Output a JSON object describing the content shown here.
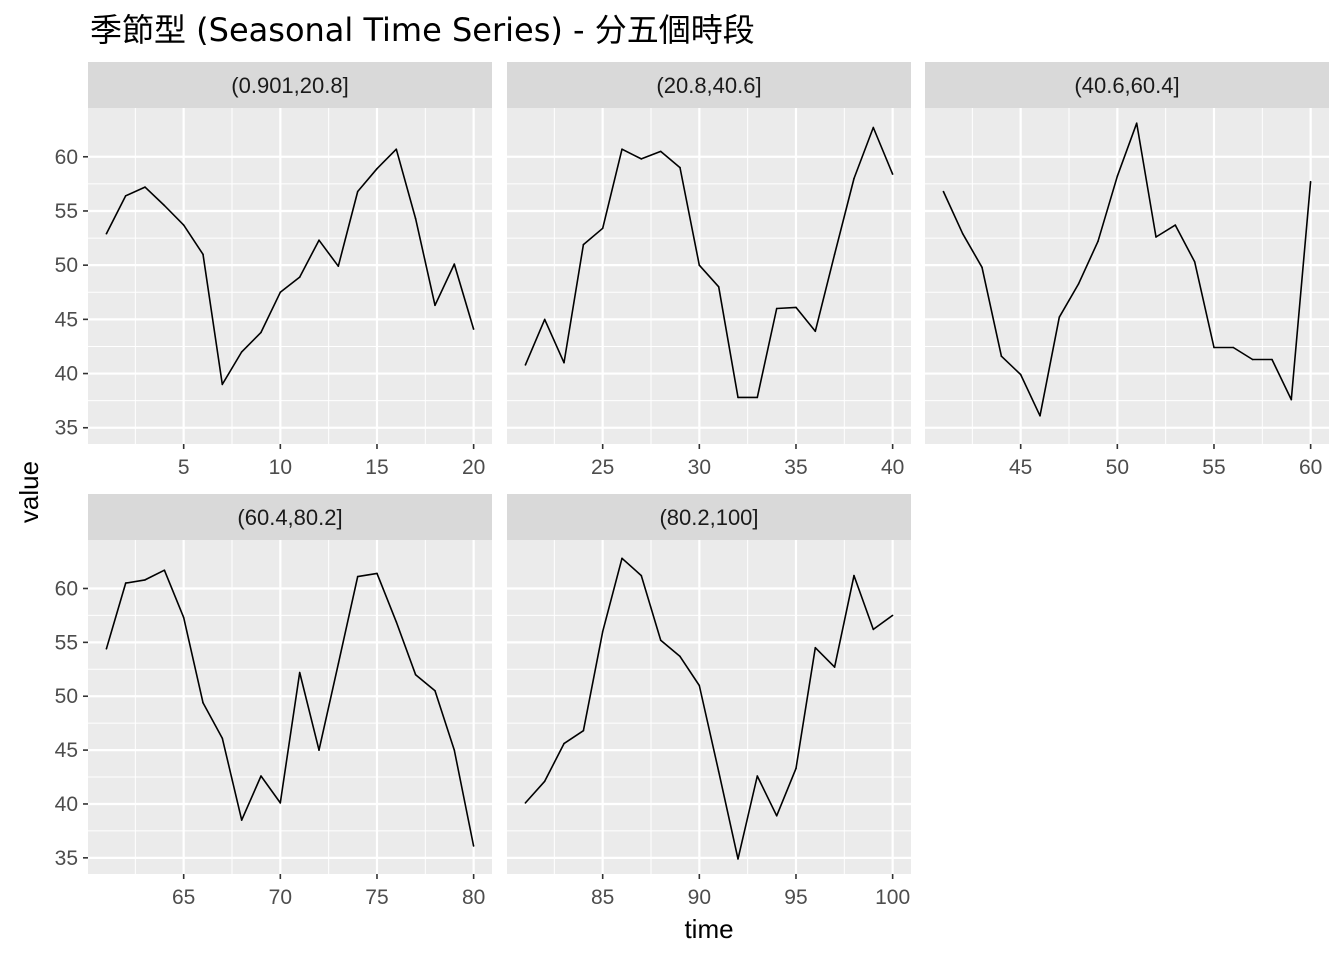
{
  "chart_data": {
    "type": "line",
    "title": "季節型 (Seasonal Time Series) - 分五個時段",
    "xlabel": "time",
    "ylabel": "value",
    "grid": true,
    "legend": "none",
    "colors": {
      "panel_bg": "#ebebeb",
      "strip_bg": "#d9d9d9",
      "grid": "#ffffff",
      "line": "#000000"
    },
    "ylim": [
      33.5,
      64.5
    ],
    "yticks": [
      35,
      40,
      45,
      50,
      55,
      60
    ],
    "panels": [
      {
        "label": "(0.901,20.8]",
        "xlim": [
          0.05,
          20.95
        ],
        "xticks": [
          5,
          10,
          15,
          20
        ],
        "x": [
          1,
          2,
          3,
          4,
          5,
          6,
          7,
          8,
          9,
          10,
          11,
          12,
          13,
          14,
          15,
          16,
          17,
          18,
          19,
          20
        ],
        "y": [
          52.9,
          56.4,
          57.2,
          55.5,
          53.7,
          51.0,
          39.0,
          42.0,
          43.8,
          47.5,
          48.9,
          52.3,
          49.9,
          56.8,
          58.9,
          60.7,
          54.3,
          46.3,
          50.1,
          44.1
        ]
      },
      {
        "label": "(20.8,40.6]",
        "xlim": [
          20.05,
          40.95
        ],
        "xticks": [
          25,
          30,
          35,
          40
        ],
        "x": [
          21,
          22,
          23,
          24,
          25,
          26,
          27,
          28,
          29,
          30,
          31,
          32,
          33,
          34,
          35,
          36,
          37,
          38,
          39,
          40
        ],
        "y": [
          40.8,
          45.0,
          41.0,
          51.9,
          53.4,
          60.7,
          59.8,
          60.5,
          59.0,
          50.0,
          48.0,
          37.8,
          37.8,
          46.0,
          46.1,
          43.9,
          51.0,
          58.0,
          62.7,
          58.4
        ]
      },
      {
        "label": "(40.6,60.4]",
        "xlim": [
          40.05,
          60.95
        ],
        "xticks": [
          45,
          50,
          55,
          60
        ],
        "x": [
          41,
          42,
          43,
          44,
          45,
          46,
          47,
          48,
          49,
          50,
          51,
          52,
          53,
          54,
          55,
          56,
          57,
          58,
          59,
          60
        ],
        "y": [
          56.8,
          52.9,
          49.8,
          41.6,
          39.9,
          36.1,
          45.2,
          48.3,
          52.2,
          58.2,
          63.1,
          52.6,
          53.7,
          50.3,
          42.4,
          42.4,
          41.3,
          41.3,
          37.6,
          57.7
        ]
      },
      {
        "label": "(60.4,80.2]",
        "xlim": [
          60.05,
          80.95
        ],
        "xticks": [
          65,
          70,
          75,
          80
        ],
        "x": [
          61,
          62,
          63,
          64,
          65,
          66,
          67,
          68,
          69,
          70,
          71,
          72,
          73,
          74,
          75,
          76,
          77,
          78,
          79,
          80
        ],
        "y": [
          54.4,
          60.5,
          60.8,
          61.7,
          57.3,
          49.4,
          46.1,
          38.5,
          42.6,
          40.1,
          52.2,
          45.0,
          53.0,
          61.1,
          61.4,
          56.9,
          52.0,
          50.5,
          45.0,
          36.1
        ]
      },
      {
        "label": "(80.2,100]",
        "xlim": [
          80.05,
          100.95
        ],
        "xticks": [
          85,
          90,
          95,
          100
        ],
        "x": [
          81,
          82,
          83,
          84,
          85,
          86,
          87,
          88,
          89,
          90,
          91,
          92,
          93,
          94,
          95,
          96,
          97,
          98,
          99,
          100
        ],
        "y": [
          40.1,
          42.1,
          45.6,
          46.8,
          56.0,
          62.8,
          61.2,
          55.2,
          53.7,
          51.0,
          43.0,
          34.9,
          42.6,
          38.9,
          43.3,
          54.5,
          52.7,
          61.2,
          56.2,
          57.5
        ]
      }
    ]
  }
}
